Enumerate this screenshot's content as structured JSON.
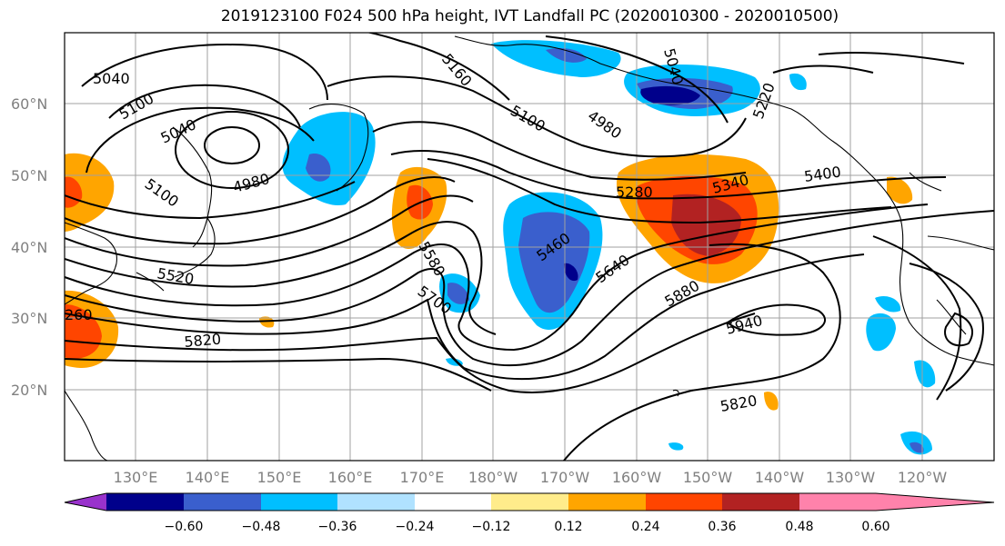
{
  "title": "2019123100 F024 500 hPa height, IVT Landfall PC (2020010300 - 2020010500)",
  "lat_labels": [
    "60°N",
    "50°N",
    "40°N",
    "30°N",
    "20°N"
  ],
  "lon_labels": [
    "130°E",
    "140°E",
    "150°E",
    "160°E",
    "170°E",
    "180°W",
    "170°W",
    "160°W",
    "150°W",
    "140°W",
    "130°W",
    "120°W"
  ],
  "contour_labels": [
    "5040",
    "5100",
    "5040",
    "4980",
    "5100",
    "5160",
    "5100",
    "4980",
    "5040",
    "5220",
    "5280",
    "5340",
    "5400",
    "5460",
    "5520",
    "5580",
    "5640",
    "5700",
    "5820",
    "5880",
    "5940",
    "5820",
    "260"
  ],
  "colorbar": {
    "ticks": [
      "−0.60",
      "−0.48",
      "−0.36",
      "−0.24",
      "−0.12",
      "0.12",
      "0.24",
      "0.36",
      "0.48",
      "0.60"
    ],
    "colors": [
      "#9932cc",
      "#00008b",
      "#3a5fcd",
      "#00bfff",
      "#b0e2ff",
      "#ffffff",
      "#ffec8b",
      "#ffa500",
      "#ff4500",
      "#b22222",
      "#ff82ab"
    ]
  }
}
